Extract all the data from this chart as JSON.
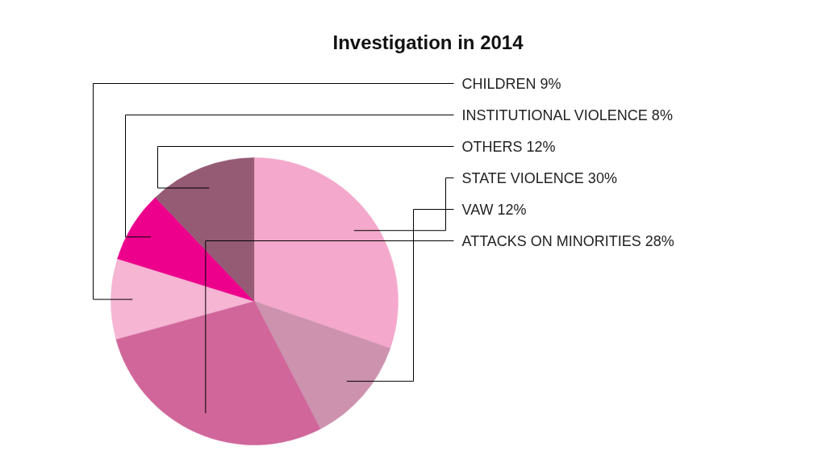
{
  "chart_data": {
    "type": "pie",
    "title": "Investigation in 2014",
    "categories": [
      "CHILDREN",
      "INSTITUTIONAL VIOLENCE",
      "OTHERS",
      "STATE VIOLENCE",
      "VAW",
      "ATTACKS ON MINORITIES"
    ],
    "values": [
      9,
      8,
      12,
      30,
      12,
      28
    ],
    "value_labels": [
      "9%",
      "8%",
      "12%",
      "30%",
      "12%",
      "28%"
    ],
    "colors": [
      "#f5b5d3",
      "#ec008c",
      "#955a74",
      "#f4a8cb",
      "#cc92ae",
      "#d0669a"
    ]
  }
}
